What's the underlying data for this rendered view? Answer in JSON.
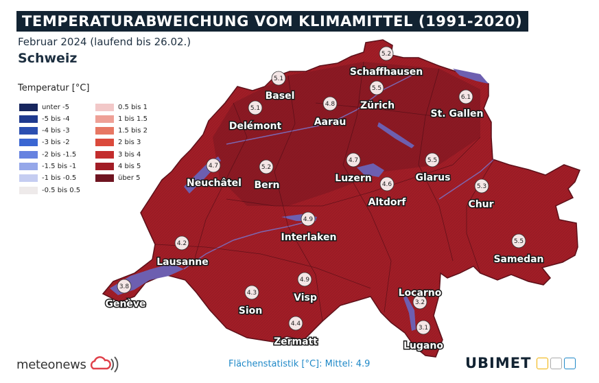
{
  "title": "TEMPERATURABWEICHUNG VOM KLIMAMITTEL (1991-2020)",
  "subtitle": "Februar 2024 (laufend bis 26.02.)",
  "region": "Schweiz",
  "legend": {
    "title": "Temperatur [°C]",
    "items": [
      {
        "label": "unter -5",
        "color": "#17265e"
      },
      {
        "label": "-5 bis -4",
        "color": "#1f3a8f"
      },
      {
        "label": "-4 bis -3",
        "color": "#2b4fb1"
      },
      {
        "label": "-3 bis -2",
        "color": "#3a66d2"
      },
      {
        "label": "-2 bis -1.5",
        "color": "#6682e0"
      },
      {
        "label": "-1.5 bis -1",
        "color": "#95a7e9"
      },
      {
        "label": "-1 bis -0.5",
        "color": "#c5cdf1"
      },
      {
        "label": "-0.5 bis 0.5",
        "color": "#eeeaea"
      },
      {
        "label": "0.5 bis 1",
        "color": "#f2c8c8"
      },
      {
        "label": "1 bis 1.5",
        "color": "#eea096"
      },
      {
        "label": "1.5 bis 2",
        "color": "#e77763"
      },
      {
        "label": "2 bis 3",
        "color": "#db4a3c"
      },
      {
        "label": "3 bis 4",
        "color": "#c32d2d"
      },
      {
        "label": "4 bis 5",
        "color": "#a11d26"
      },
      {
        "label": "über 5",
        "color": "#6f1420"
      }
    ]
  },
  "stations": [
    {
      "name": "Schaffhausen",
      "value": "5.2"
    },
    {
      "name": "Basel",
      "value": "5.1"
    },
    {
      "name": "Zürich",
      "value": "5.5"
    },
    {
      "name": "St. Gallen",
      "value": "6.1"
    },
    {
      "name": "Delémont",
      "value": "5.1"
    },
    {
      "name": "Aarau",
      "value": "4.8"
    },
    {
      "name": "Neuchâtel",
      "value": "4.7"
    },
    {
      "name": "Bern",
      "value": "5.2"
    },
    {
      "name": "Luzern",
      "value": "4.7"
    },
    {
      "name": "Glarus",
      "value": "5.5"
    },
    {
      "name": "Altdorf",
      "value": "4.6"
    },
    {
      "name": "Chur",
      "value": "5.3"
    },
    {
      "name": "Interlaken",
      "value": "4.9"
    },
    {
      "name": "Lausanne",
      "value": "4.2"
    },
    {
      "name": "Samedan",
      "value": "5.5"
    },
    {
      "name": "Genève",
      "value": "3.8"
    },
    {
      "name": "Sion",
      "value": "4.3"
    },
    {
      "name": "Visp",
      "value": "4.9"
    },
    {
      "name": "Locarno",
      "value": "3.2"
    },
    {
      "name": "Zermatt",
      "value": "4.4"
    },
    {
      "name": "Lugano",
      "value": "3.1"
    }
  ],
  "footer": {
    "provider": "meteonews",
    "stat": "Flächenstatistik [°C]: Mittel: 4.9",
    "partner": "UBIMET"
  },
  "colors": {
    "map_fill": "#a11d26",
    "map_dark": "#6f1420",
    "water": "#6d5fb0",
    "title_bg": "#122332"
  }
}
